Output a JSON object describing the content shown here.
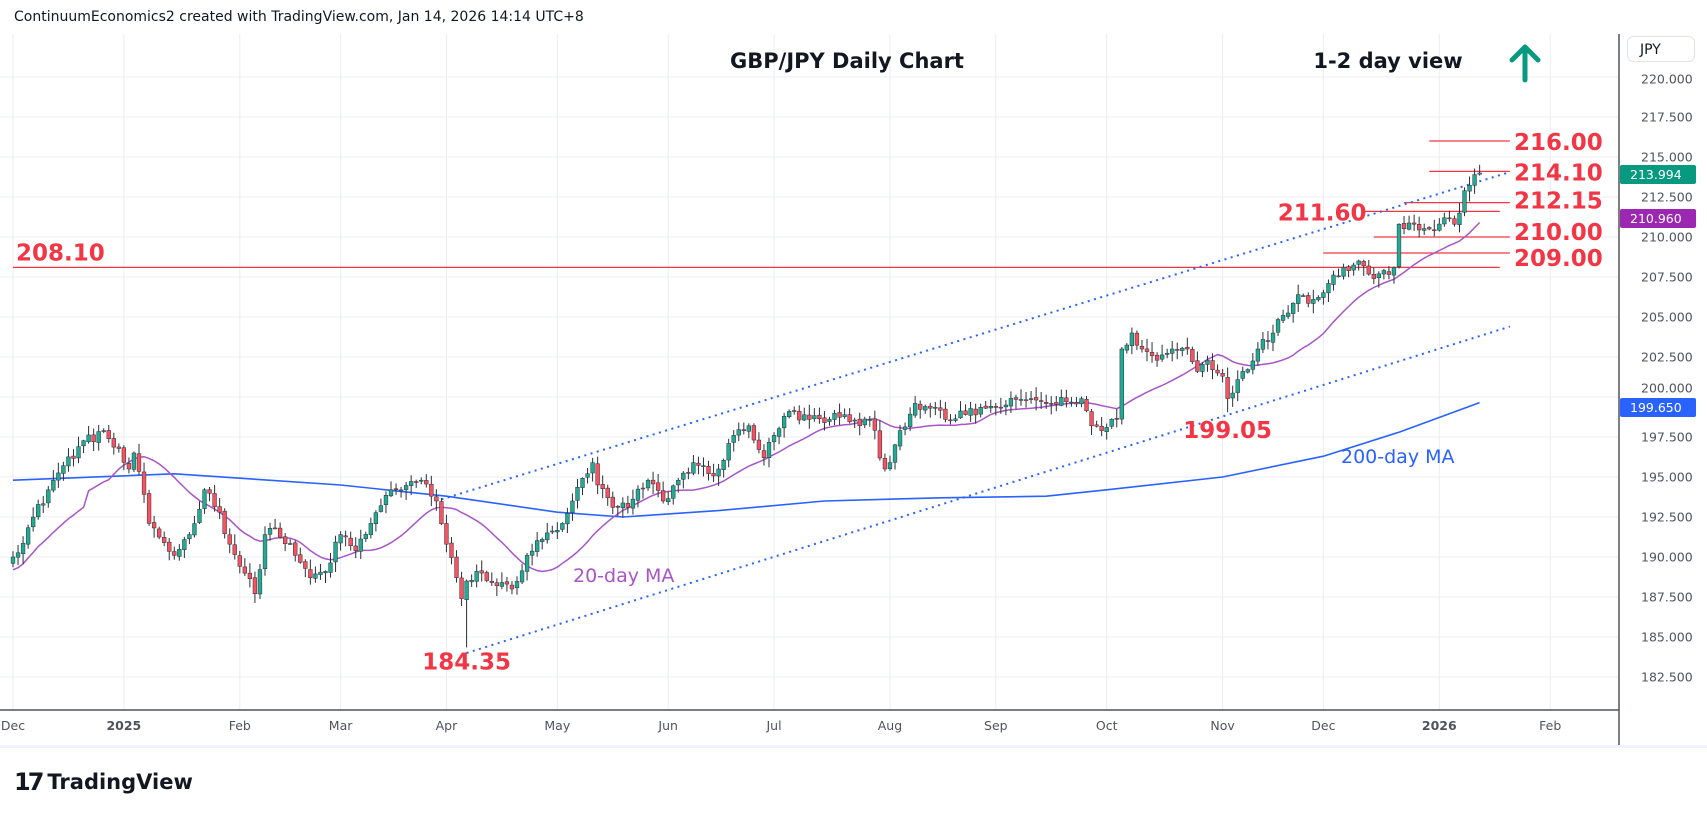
{
  "header": {
    "attribution": "ContinuumEconomics2 created with TradingView.com, Jan 14, 2026 14:14 UTC+8"
  },
  "price_axis": {
    "currency_button": "JPY"
  },
  "branding": {
    "logo_mark": "17",
    "logo_text": "TradingView"
  },
  "colors": {
    "up": "#22ab94",
    "down": "#f7525f",
    "annotation": "#f23645",
    "channel": "#2962ff",
    "ma20": "#a855c8",
    "ma200": "#2962ff",
    "last_price": "#089981",
    "ma20_badge": "#9c27b0",
    "ma200_badge": "#2962ff",
    "arrow": "#089981"
  },
  "chart_data": {
    "type": "candlestick",
    "symbol": "GBP/JPY",
    "title": "GBP/JPY Daily Chart",
    "subtitle": "1-2 day view",
    "view_icon": "up-arrow-icon",
    "ylim": [
      180.6,
      222.1
    ],
    "yticks": [
      "182.500",
      "185.000",
      "187.500",
      "190.000",
      "192.500",
      "195.000",
      "197.500",
      "200.000",
      "202.500",
      "205.000",
      "207.500",
      "210.000",
      "212.500",
      "215.000",
      "217.500",
      "220.000"
    ],
    "xticks": [
      {
        "date": "2024-12-02",
        "label": "Dec",
        "bold": false
      },
      {
        "date": "2025-01-01",
        "label": "2025",
        "bold": true
      },
      {
        "date": "2025-02-03",
        "label": "Feb",
        "bold": false
      },
      {
        "date": "2025-03-03",
        "label": "Mar",
        "bold": false
      },
      {
        "date": "2025-04-01",
        "label": "Apr",
        "bold": false
      },
      {
        "date": "2025-05-01",
        "label": "May",
        "bold": false
      },
      {
        "date": "2025-06-02",
        "label": "Jun",
        "bold": false
      },
      {
        "date": "2025-07-01",
        "label": "Jul",
        "bold": false
      },
      {
        "date": "2025-08-01",
        "label": "Aug",
        "bold": false
      },
      {
        "date": "2025-09-01",
        "label": "Sep",
        "bold": false
      },
      {
        "date": "2025-10-01",
        "label": "Oct",
        "bold": false
      },
      {
        "date": "2025-11-03",
        "label": "Nov",
        "bold": false
      },
      {
        "date": "2025-12-01",
        "label": "Dec",
        "bold": false
      },
      {
        "date": "2026-01-01",
        "label": "2026",
        "bold": true
      },
      {
        "date": "2026-02-02",
        "label": "Feb",
        "bold": false
      }
    ],
    "close_path": [
      [
        "2024-12-02",
        190.0
      ],
      [
        "2024-12-12",
        194.8
      ],
      [
        "2024-12-19",
        196.9
      ],
      [
        "2024-12-26",
        197.9
      ],
      [
        "2025-01-02",
        195.5
      ],
      [
        "2025-01-03",
        196.5
      ],
      [
        "2025-01-08",
        192.1
      ],
      [
        "2025-01-15",
        190.1
      ],
      [
        "2025-01-20",
        191.4
      ],
      [
        "2025-01-23",
        194.2
      ],
      [
        "2025-01-28",
        192.8
      ],
      [
        "2025-01-30",
        190.8
      ],
      [
        "2025-02-06",
        187.7
      ],
      [
        "2025-02-10",
        191.4
      ],
      [
        "2025-02-12",
        191.8
      ],
      [
        "2025-02-18",
        190.1
      ],
      [
        "2025-02-21",
        188.7
      ],
      [
        "2025-02-26",
        189.1
      ],
      [
        "2025-03-03",
        191.4
      ],
      [
        "2025-03-06",
        190.4
      ],
      [
        "2025-03-11",
        192.1
      ],
      [
        "2025-03-17",
        194.2
      ],
      [
        "2025-03-25",
        194.8
      ],
      [
        "2025-03-27",
        193.8
      ],
      [
        "2025-03-28",
        193.5
      ],
      [
        "2025-04-01",
        190.8
      ],
      [
        "2025-04-04",
        187.4
      ],
      [
        "2025-04-07",
        188.5
      ],
      [
        "2025-04-09",
        189.1
      ],
      [
        "2025-04-14",
        188.4
      ],
      [
        "2025-04-18",
        188.0
      ],
      [
        "2025-04-23",
        190.1
      ],
      [
        "2025-04-28",
        191.1
      ],
      [
        "2025-05-02",
        192.1
      ],
      [
        "2025-05-06",
        193.5
      ],
      [
        "2025-05-12",
        195.9
      ],
      [
        "2025-05-13",
        194.5
      ],
      [
        "2025-05-16",
        193.1
      ],
      [
        "2025-05-21",
        193.1
      ],
      [
        "2025-05-27",
        194.8
      ],
      [
        "2025-05-30",
        193.5
      ],
      [
        "2025-06-04",
        194.8
      ],
      [
        "2025-06-09",
        195.9
      ],
      [
        "2025-06-12",
        195.2
      ],
      [
        "2025-06-16",
        195.5
      ],
      [
        "2025-06-19",
        197.6
      ],
      [
        "2025-06-24",
        198.2
      ],
      [
        "2025-06-27",
        196.2
      ],
      [
        "2025-07-01",
        197.6
      ],
      [
        "2025-07-04",
        199.1
      ],
      [
        "2025-07-10",
        198.6
      ],
      [
        "2025-07-16",
        198.6
      ],
      [
        "2025-07-21",
        198.9
      ],
      [
        "2025-07-24",
        198.2
      ],
      [
        "2025-07-28",
        198.6
      ],
      [
        "2025-07-31",
        195.5
      ],
      [
        "2025-08-01",
        195.9
      ],
      [
        "2025-08-05",
        197.9
      ],
      [
        "2025-08-08",
        199.6
      ],
      [
        "2025-08-13",
        199.3
      ],
      [
        "2025-08-18",
        198.6
      ],
      [
        "2025-08-22",
        198.9
      ],
      [
        "2025-08-28",
        199.3
      ],
      [
        "2025-09-03",
        199.5
      ],
      [
        "2025-09-10",
        199.9
      ],
      [
        "2025-09-16",
        199.6
      ],
      [
        "2025-09-19",
        199.7
      ],
      [
        "2025-09-24",
        199.9
      ],
      [
        "2025-09-26",
        198.2
      ],
      [
        "2025-09-30",
        197.9
      ],
      [
        "2025-10-03",
        198.6
      ],
      [
        "2025-10-06",
        203.0
      ],
      [
        "2025-10-08",
        204.0
      ],
      [
        "2025-10-10",
        203.0
      ],
      [
        "2025-10-15",
        202.3
      ],
      [
        "2025-10-20",
        203.0
      ],
      [
        "2025-10-23",
        203.0
      ],
      [
        "2025-10-27",
        201.6
      ],
      [
        "2025-10-29",
        202.3
      ],
      [
        "2025-11-03",
        201.3
      ],
      [
        "2025-11-04",
        199.9
      ],
      [
        "2025-11-07",
        201.6
      ],
      [
        "2025-11-12",
        203.0
      ],
      [
        "2025-11-17",
        204.0
      ],
      [
        "2025-11-19",
        205.1
      ],
      [
        "2025-11-24",
        206.4
      ],
      [
        "2025-11-27",
        206.1
      ],
      [
        "2025-12-02",
        207.1
      ],
      [
        "2025-12-05",
        208.1
      ],
      [
        "2025-12-10",
        208.5
      ],
      [
        "2025-12-15",
        207.4
      ],
      [
        "2025-12-19",
        208.1
      ],
      [
        "2025-12-22",
        210.8
      ],
      [
        "2025-12-25",
        210.8
      ],
      [
        "2025-12-30",
        210.5
      ],
      [
        "2026-01-02",
        211.2
      ],
      [
        "2026-01-06",
        210.8
      ],
      [
        "2026-01-07",
        211.5
      ],
      [
        "2026-01-08",
        212.9
      ],
      [
        "2026-01-12",
        213.9
      ],
      [
        "2026-01-13",
        214.0
      ]
    ],
    "extreme_lows": [
      [
        "2025-04-07",
        184.35
      ],
      [
        "2025-11-04",
        199.05
      ]
    ],
    "ma20": {
      "label": "20-day MA",
      "period": 20
    },
    "ma200": {
      "label": "200-day MA",
      "path": [
        [
          "2024-12-02",
          194.8
        ],
        [
          "2025-01-15",
          195.2
        ],
        [
          "2025-03-03",
          194.5
        ],
        [
          "2025-04-01",
          193.8
        ],
        [
          "2025-05-01",
          192.8
        ],
        [
          "2025-05-20",
          192.5
        ],
        [
          "2025-06-15",
          192.9
        ],
        [
          "2025-07-15",
          193.5
        ],
        [
          "2025-08-15",
          193.7
        ],
        [
          "2025-09-15",
          193.8
        ],
        [
          "2025-10-01",
          194.2
        ],
        [
          "2025-11-01",
          195.0
        ],
        [
          "2025-12-01",
          196.3
        ],
        [
          "2025-12-20",
          197.8
        ],
        [
          "2026-01-13",
          199.65
        ]
      ]
    },
    "last_values": {
      "price": "213.994",
      "ma20": "210.960",
      "ma200": "199.650"
    },
    "levels": [
      {
        "label": "216.00",
        "value": 216.0,
        "from": "2025-12-30",
        "to": "2026-01-21",
        "label_side": "right"
      },
      {
        "label": "214.10",
        "value": 214.1,
        "from": "2025-12-30",
        "to": "2026-01-21",
        "label_side": "right"
      },
      {
        "label": "212.15",
        "value": 212.15,
        "from": "2025-12-23",
        "to": "2026-01-21",
        "label_side": "right"
      },
      {
        "label": "211.60",
        "value": 211.6,
        "from": "2025-12-11",
        "to": "2026-01-19",
        "label_side": "left"
      },
      {
        "label": "210.00",
        "value": 210.0,
        "from": "2025-12-15",
        "to": "2026-01-21",
        "label_side": "right"
      },
      {
        "label": "209.00",
        "value": 209.0,
        "from": "2025-12-01",
        "to": "2026-01-21",
        "label_side": "right"
      },
      {
        "label": "208.10",
        "value": 208.1,
        "from": "2024-12-02",
        "to": "2026-01-19",
        "label_side": "far-left"
      }
    ],
    "point_labels": [
      {
        "label": "184.35",
        "date": "2025-04-07",
        "value": 184.35
      },
      {
        "label": "199.05",
        "date": "2025-11-04",
        "value": 199.05
      }
    ],
    "channel": [
      {
        "name": "upper",
        "from": [
          "2025-03-31",
          193.6
        ],
        "to": [
          "2026-01-21",
          214.06
        ]
      },
      {
        "name": "lower",
        "from": [
          "2025-04-07",
          184.0
        ],
        "to": [
          "2026-01-21",
          204.4
        ]
      }
    ]
  }
}
